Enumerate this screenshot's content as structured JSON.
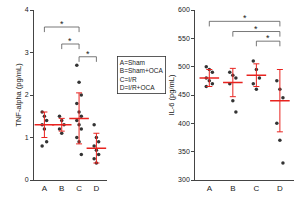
{
  "chart_data": [
    {
      "type": "scatter",
      "y_label": "TNF-alpha (pg/mL)",
      "categories": [
        "A",
        "B",
        "C",
        "D"
      ],
      "points": [
        [
          1.6,
          1.5,
          1.4,
          1.3,
          1.2,
          0.9,
          0.8
        ],
        [
          1.5,
          1.4,
          1.3,
          1.2,
          1.1
        ],
        [
          2.7,
          2.3,
          2.0,
          1.8,
          1.6,
          1.5,
          1.4,
          1.3,
          1.2,
          1.0,
          0.9,
          0.6
        ],
        [
          1.3,
          1.0,
          0.9,
          0.8,
          0.7,
          0.6,
          0.5,
          0.4
        ]
      ],
      "mean": [
        1.3,
        1.3,
        1.45,
        0.75
      ],
      "sd": [
        0.3,
        0.15,
        0.6,
        0.35
      ],
      "color": "#333333",
      "ylim": [
        0,
        4
      ],
      "yticks": [
        0,
        1,
        2,
        3,
        4
      ],
      "grid": false,
      "comparisons": [
        {
          "from": "A",
          "to": "C",
          "y": 3.6,
          "label": "*"
        },
        {
          "from": "B",
          "to": "C",
          "y": 3.2,
          "label": "*"
        },
        {
          "from": "C",
          "to": "D",
          "y": 2.9,
          "label": "*"
        }
      ]
    },
    {
      "type": "scatter",
      "y_label": "IL-6 (pg/mL)",
      "categories": [
        "A",
        "B",
        "C",
        "D"
      ],
      "points": [
        [
          500,
          495,
          490,
          480,
          475,
          470,
          465
        ],
        [
          490,
          485,
          480,
          470,
          440,
          420
        ],
        [
          510,
          495,
          480,
          470,
          460
        ],
        [
          475,
          460,
          445,
          400,
          370,
          330
        ]
      ],
      "mean": [
        480,
        472,
        485,
        440
      ],
      "sd": [
        15,
        25,
        20,
        55
      ],
      "color": "#333333",
      "ylim": [
        300,
        600
      ],
      "yticks": [
        300,
        350,
        400,
        450,
        500,
        550,
        600
      ],
      "grid": false,
      "comparisons": [
        {
          "from": "A",
          "to": "D",
          "y": 580,
          "label": "*"
        },
        {
          "from": "B",
          "to": "D",
          "y": 562,
          "label": "*"
        },
        {
          "from": "C",
          "to": "D",
          "y": 545,
          "label": "*"
        }
      ]
    }
  ],
  "key_box": [
    "A=Sham",
    "B=Sham+OCA",
    "C=I/R",
    "D=I/R+OCA"
  ]
}
